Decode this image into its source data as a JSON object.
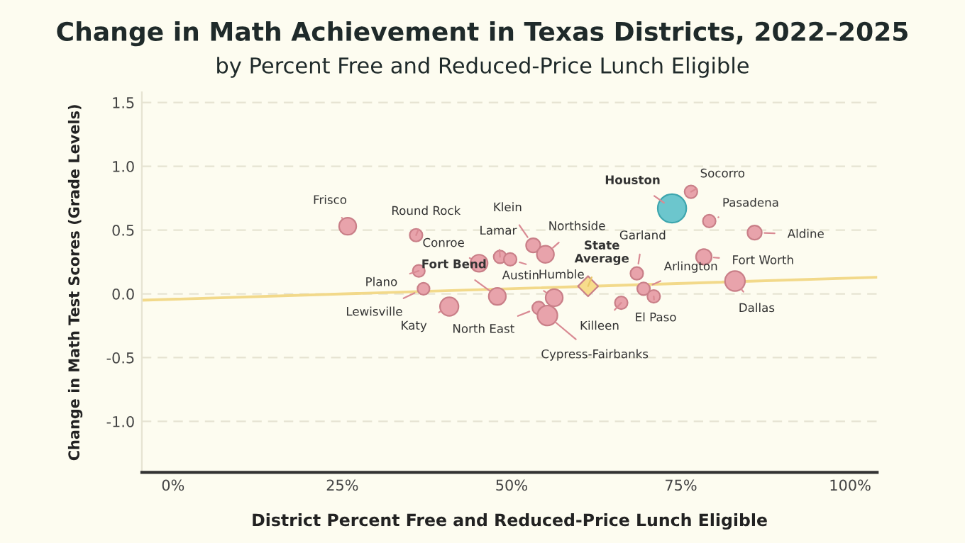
{
  "chart_data": {
    "type": "scatter",
    "title": "Change in Math Achievement in Texas Districts, 2022–2025",
    "subtitle": "by Percent Free and Reduced-Price Lunch Eligible",
    "xlabel": "District Percent Free and Reduced-Price Lunch Eligible",
    "ylabel": "Change in Math Test Scores (Grade Levels)",
    "xlim": [
      -4.6,
      104
    ],
    "ylim": [
      -1.4,
      1.58
    ],
    "xticks": [
      {
        "value": 0,
        "label": "0%"
      },
      {
        "value": 25,
        "label": "25%"
      },
      {
        "value": 50,
        "label": "50%"
      },
      {
        "value": 75,
        "label": "75%"
      },
      {
        "value": 100,
        "label": "100%"
      }
    ],
    "yticks": [
      {
        "value": -1.0,
        "label": "-1.0"
      },
      {
        "value": -0.5,
        "label": "-0.5"
      },
      {
        "value": 0.0,
        "label": "0.0"
      },
      {
        "value": 0.5,
        "label": "0.5"
      },
      {
        "value": 1.0,
        "label": "1.0"
      },
      {
        "value": 1.5,
        "label": "1.5"
      }
    ],
    "grid": "y",
    "legend": false,
    "series": [
      {
        "type": "line",
        "color": "#f2d98a",
        "x": [
          -4.6,
          104
        ],
        "values": [
          -0.05,
          0.13
        ]
      },
      {
        "marker": "circle",
        "x": [
          25.8,
          35.9,
          36.3,
          37.0,
          40.8,
          45.2,
          47.9,
          48.3,
          49.8,
          53.2,
          55.0,
          56.3,
          54.0,
          55.3,
          73.7,
          76.5,
          79.2,
          85.9,
          78.4,
          68.5,
          69.5,
          71.0,
          66.2,
          83.0
        ],
        "values": [
          0.53,
          0.46,
          0.18,
          0.04,
          -0.1,
          0.24,
          -0.02,
          0.29,
          0.27,
          0.38,
          0.31,
          -0.03,
          -0.11,
          -0.17,
          0.67,
          0.8,
          0.57,
          0.48,
          0.29,
          0.16,
          0.04,
          -0.02,
          -0.07,
          0.1
        ],
        "sizes": [
          0.36,
          0.2,
          0.18,
          0.18,
          0.42,
          0.36,
          0.36,
          0.2,
          0.2,
          0.25,
          0.36,
          0.36,
          0.2,
          0.49,
          1,
          0.2,
          0.2,
          0.25,
          0.3,
          0.2,
          0.2,
          0.2,
          0.2,
          0.49
        ],
        "colors": [
          "#e8a3ab",
          "#e8a3ab",
          "#e8a3ab",
          "#e8a3ab",
          "#e8a3ab",
          "#e8a3ab",
          "#e8a3ab",
          "#e8a3ab",
          "#e8a3ab",
          "#e8a3ab",
          "#e8a3ab",
          "#e8a3ab",
          "#e8a3ab",
          "#e8a3ab",
          "#6cc6cd",
          "#e8a3ab",
          "#e8a3ab",
          "#e8a3ab",
          "#e8a3ab",
          "#e8a3ab",
          "#e8a3ab",
          "#e8a3ab",
          "#e8a3ab",
          "#e8a3ab"
        ]
      },
      {
        "marker": "diamond",
        "color": "#f7dc8c",
        "x": [
          61.3
        ],
        "values": [
          0.06
        ],
        "sizes": [
          0.25
        ]
      }
    ],
    "annotations": [
      {
        "text": "Frisco",
        "x": 25.8,
        "y": 0.53
      },
      {
        "text": "Round Rock",
        "x": 35.9,
        "y": 0.46
      },
      {
        "text": "Plano",
        "x": 36.3,
        "y": 0.18
      },
      {
        "text": "Lewisville",
        "x": 37.0,
        "y": 0.04
      },
      {
        "text": "Katy",
        "x": 40.8,
        "y": -0.1
      },
      {
        "text": "Conroe",
        "x": 45.2,
        "y": 0.24
      },
      {
        "text": "Fort Bend",
        "x": 47.9,
        "y": -0.02
      },
      {
        "text": "Lamar",
        "x": 48.3,
        "y": 0.29
      },
      {
        "text": "Humble",
        "x": 49.8,
        "y": 0.27
      },
      {
        "text": "Klein",
        "x": 53.2,
        "y": 0.38
      },
      {
        "text": "Northside",
        "x": 55.0,
        "y": 0.31
      },
      {
        "text": "Austin",
        "x": 56.3,
        "y": -0.03
      },
      {
        "text": "North East",
        "x": 54.0,
        "y": -0.11
      },
      {
        "text": "Cypress-Fairbanks",
        "x": 55.3,
        "y": -0.17
      },
      {
        "text": "Houston",
        "x": 73.7,
        "y": 0.67
      },
      {
        "text": "Socorro",
        "x": 76.5,
        "y": 0.8
      },
      {
        "text": "Pasadena",
        "x": 79.2,
        "y": 0.57
      },
      {
        "text": "Aldine",
        "x": 85.9,
        "y": 0.48
      },
      {
        "text": "Fort Worth",
        "x": 78.4,
        "y": 0.29
      },
      {
        "text": "Garland",
        "x": 68.5,
        "y": 0.16
      },
      {
        "text": "Arlington",
        "x": 69.5,
        "y": 0.04
      },
      {
        "text": "El Paso",
        "x": 71.0,
        "y": -0.02
      },
      {
        "text": "Killeen",
        "x": 66.2,
        "y": -0.07
      },
      {
        "text": "Dallas",
        "x": 83.0,
        "y": 0.1
      },
      {
        "text": "State\nAverage",
        "x": 61.3,
        "y": 0.06
      }
    ]
  }
}
